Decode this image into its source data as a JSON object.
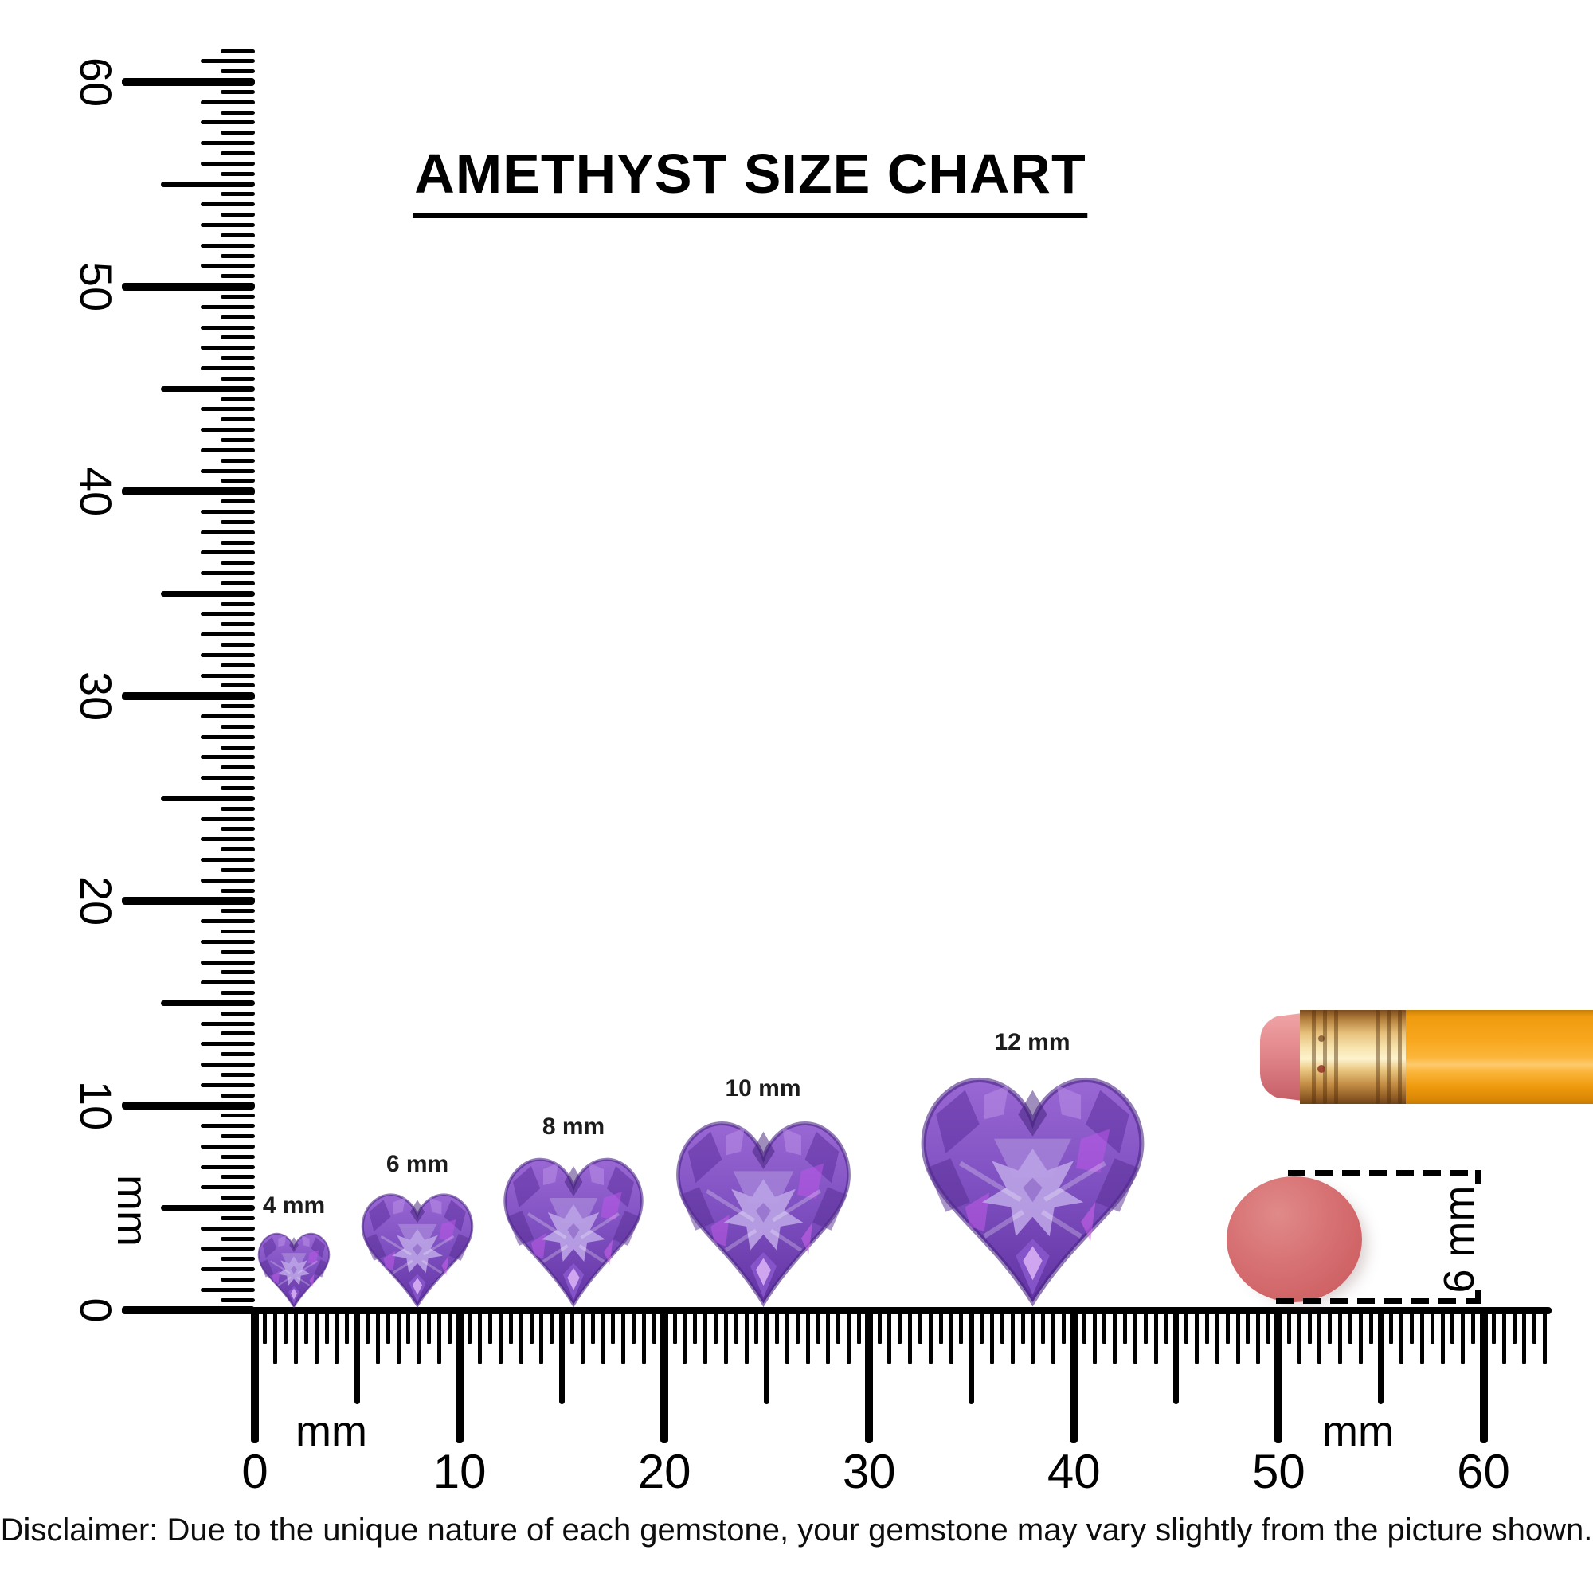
{
  "title": {
    "text": "AMETHYST SIZE CHART"
  },
  "rulers": {
    "vertical": {
      "unit": "mm",
      "tick_labels": [
        "0",
        "10",
        "20",
        "30",
        "40",
        "50",
        "60"
      ]
    },
    "horizontal": {
      "unit_left": "mm",
      "unit_right": "mm",
      "tick_labels": [
        "0",
        "10",
        "20",
        "30",
        "40",
        "50",
        "60"
      ]
    }
  },
  "gems": [
    {
      "label": "4 mm",
      "size_mm": 4
    },
    {
      "label": "6 mm",
      "size_mm": 6
    },
    {
      "label": "8 mm",
      "size_mm": 8
    },
    {
      "label": "10 mm",
      "size_mm": 10
    },
    {
      "label": "12 mm",
      "size_mm": 12
    }
  ],
  "reference_objects": {
    "pencil": "pencil",
    "eraser_disc": "flat round eraser",
    "eraser_disc_diameter_label": "6 mm"
  },
  "disclaimer": "Disclaimer: Due to the unique nature of each gemstone, your gemstone may vary slightly from the picture shown.",
  "colors": {
    "ink": "#000000",
    "gem_purple_base": "#7f4cc0",
    "gem_purple_light": "#b89fe4",
    "gem_purple_dark": "#5c2f9e",
    "pencil_orange": "#f8a71e",
    "pencil_ferrule_gold": "#e7c17c",
    "pencil_eraser_pink": "#e2878b",
    "eraser_disc_red": "#d06467"
  }
}
